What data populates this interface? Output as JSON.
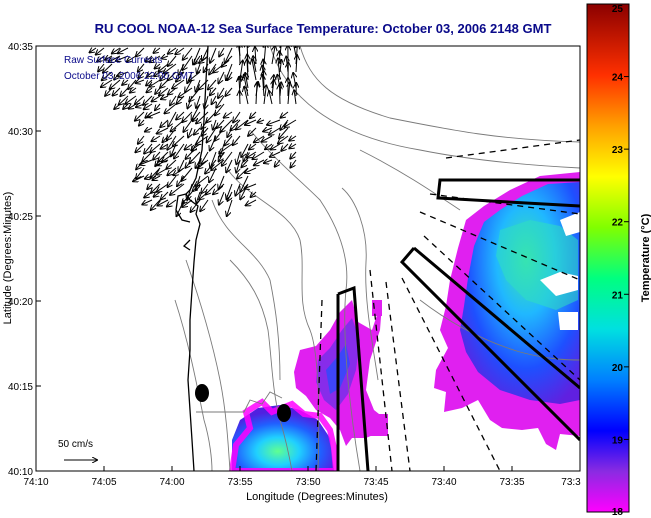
{
  "title": "RU COOL  NOAA-12  Sea Surface Temperature:  October 03, 2006 2148 GMT",
  "legend": {
    "line1": "Raw Surface Currents",
    "line2": "October 03, 2006 22:00 GMT"
  },
  "scale_label": "50 cm/s",
  "xlabel": "Longitude (Degrees:Minutes)",
  "ylabel": "Latitude (Degrees:Minutes)",
  "x_ticks": [
    "74:10",
    "74:05",
    "74:00",
    "73:55",
    "73:50",
    "73:45",
    "73:40",
    "73:35",
    "73:3"
  ],
  "y_ticks": [
    "40:35",
    "40:30",
    "40:25",
    "40:20",
    "40:15",
    "40:10"
  ],
  "colorbar": {
    "label": "Temperature (°C)",
    "ticks": [
      "25",
      "24",
      "23",
      "22",
      "21",
      "20",
      "19",
      "18"
    ],
    "min": 18,
    "max": 25
  },
  "colors": {
    "title": "#0a0a8a",
    "legend": "#0a0a8a"
  }
}
